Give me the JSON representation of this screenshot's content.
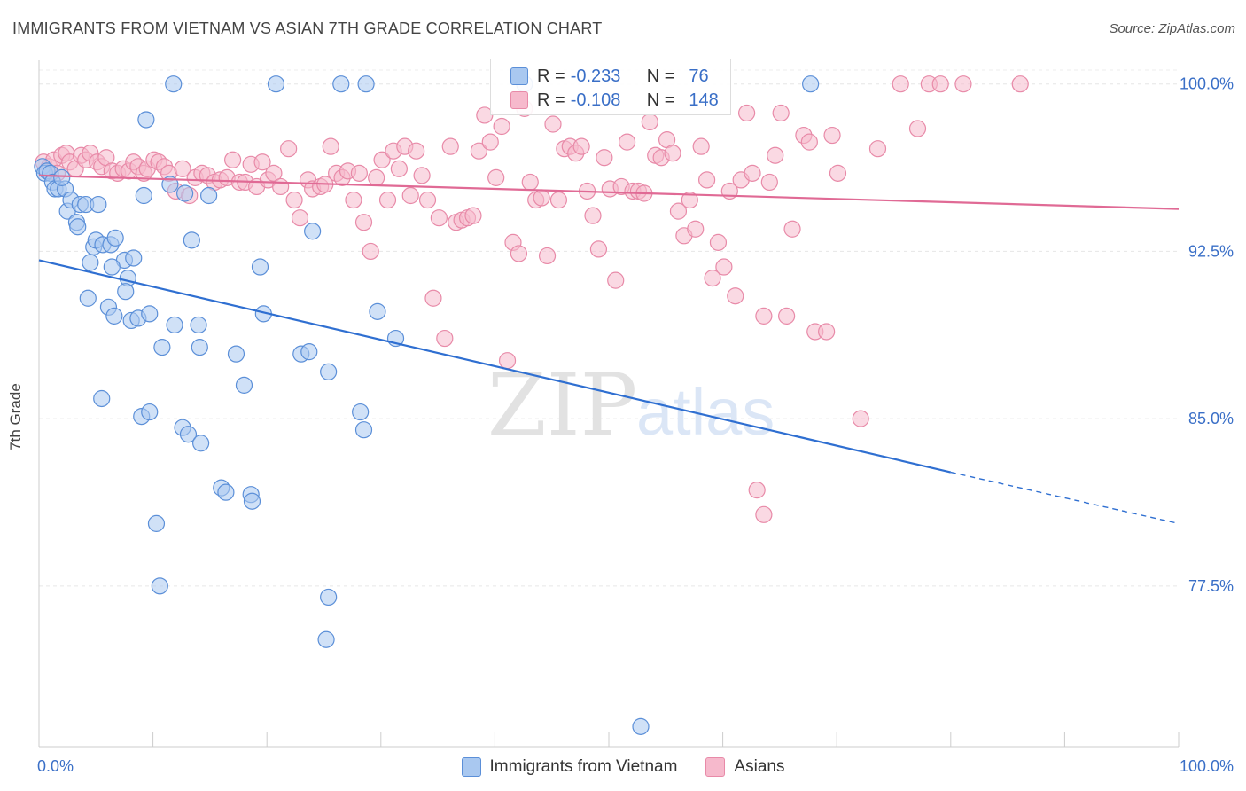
{
  "title": "IMMIGRANTS FROM VIETNAM VS ASIAN 7TH GRADE CORRELATION CHART",
  "source": "Source: ZipAtlas.com",
  "watermark": {
    "zip": "ZIP",
    "atlas": "atlas"
  },
  "colors": {
    "blue_fill": "#a9c8f0",
    "blue_stroke": "#5b8fd8",
    "blue_line": "#2f6fd1",
    "pink_fill": "#f6b9cc",
    "pink_stroke": "#e88aa8",
    "pink_line": "#e06a95",
    "axis_label": "#3a6fc7"
  },
  "legend_top": {
    "r_label": "R =",
    "n_label": "N =",
    "series": [
      {
        "r": "-0.233",
        "n": "76"
      },
      {
        "r": "-0.108",
        "n": "148"
      }
    ]
  },
  "legend_bottom": [
    "Immigrants from Vietnam",
    "Asians"
  ],
  "chart_data": {
    "type": "scatter",
    "title": "IMMIGRANTS FROM VIETNAM VS ASIAN 7TH GRADE CORRELATION CHART",
    "xlabel": "",
    "ylabel": "7th Grade",
    "xlim": [
      0,
      100
    ],
    "ylim": [
      70.3,
      101.3
    ],
    "x_tick_labels": [
      "0.0%",
      "100.0%"
    ],
    "y_ticks": [
      77.5,
      85.0,
      92.5,
      100.0
    ],
    "y_tick_labels": [
      "77.5%",
      "85.0%",
      "92.5%",
      "100.0%"
    ],
    "grid": true,
    "legend_position": "top-center",
    "series": [
      {
        "name": "Immigrants from Vietnam",
        "r": -0.233,
        "n": 76,
        "trend": {
          "x0": 0,
          "y0": 92.1,
          "x1": 80,
          "y1": 82.6,
          "dash_x1": 100,
          "dash_y1": 80.3
        },
        "points": [
          [
            0.3,
            96.3
          ],
          [
            0.5,
            96.0
          ],
          [
            0.7,
            96.1
          ],
          [
            1.0,
            96.0
          ],
          [
            1.2,
            95.6
          ],
          [
            1.4,
            95.3
          ],
          [
            1.7,
            95.3
          ],
          [
            2.3,
            95.3
          ],
          [
            2.5,
            94.3
          ],
          [
            2.8,
            94.8
          ],
          [
            3.3,
            93.8
          ],
          [
            3.4,
            93.6
          ],
          [
            3.6,
            94.6
          ],
          [
            4.1,
            94.6
          ],
          [
            5.2,
            94.6
          ],
          [
            4.8,
            92.7
          ],
          [
            5.0,
            93.0
          ],
          [
            5.6,
            92.8
          ],
          [
            6.3,
            92.8
          ],
          [
            6.7,
            93.1
          ],
          [
            7.5,
            92.1
          ],
          [
            8.3,
            92.2
          ],
          [
            4.5,
            92.0
          ],
          [
            6.4,
            91.8
          ],
          [
            7.8,
            91.3
          ],
          [
            7.6,
            90.7
          ],
          [
            4.3,
            90.4
          ],
          [
            6.1,
            90.0
          ],
          [
            6.6,
            89.6
          ],
          [
            8.1,
            89.4
          ],
          [
            8.7,
            89.5
          ],
          [
            9.7,
            89.7
          ],
          [
            11.9,
            89.2
          ],
          [
            14.0,
            89.2
          ],
          [
            10.8,
            88.2
          ],
          [
            14.1,
            88.2
          ],
          [
            17.3,
            87.9
          ],
          [
            18.0,
            86.5
          ],
          [
            19.4,
            91.8
          ],
          [
            19.7,
            89.7
          ],
          [
            23.0,
            87.9
          ],
          [
            23.7,
            88.0
          ],
          [
            25.4,
            87.1
          ],
          [
            29.7,
            89.8
          ],
          [
            31.3,
            88.6
          ],
          [
            5.5,
            85.9
          ],
          [
            9.0,
            85.1
          ],
          [
            9.7,
            85.3
          ],
          [
            12.6,
            84.6
          ],
          [
            13.1,
            84.3
          ],
          [
            14.2,
            83.9
          ],
          [
            16.0,
            81.9
          ],
          [
            16.4,
            81.7
          ],
          [
            18.6,
            81.6
          ],
          [
            18.7,
            81.3
          ],
          [
            10.3,
            80.3
          ],
          [
            10.6,
            77.5
          ],
          [
            25.4,
            77.0
          ],
          [
            25.2,
            75.1
          ],
          [
            28.2,
            85.3
          ],
          [
            28.5,
            84.5
          ],
          [
            24.0,
            93.4
          ],
          [
            13.4,
            93.0
          ],
          [
            12.8,
            95.1
          ],
          [
            11.5,
            95.5
          ],
          [
            9.2,
            95.0
          ],
          [
            14.9,
            95.0
          ],
          [
            9.4,
            98.4
          ],
          [
            11.8,
            100.0
          ],
          [
            20.8,
            100.0
          ],
          [
            26.5,
            100.0
          ],
          [
            28.7,
            100.0
          ],
          [
            42.6,
            100.0
          ],
          [
            67.7,
            100.0
          ],
          [
            52.8,
            71.2
          ],
          [
            2.0,
            95.8
          ]
        ]
      },
      {
        "name": "Asians",
        "r": -0.108,
        "n": 148,
        "trend": {
          "x0": 0,
          "y0": 95.9,
          "x1": 100,
          "y1": 94.4
        },
        "points": [
          [
            0.4,
            96.5
          ],
          [
            0.9,
            96.3
          ],
          [
            1.3,
            96.6
          ],
          [
            1.6,
            96.0
          ],
          [
            2.0,
            96.8
          ],
          [
            2.4,
            96.9
          ],
          [
            2.7,
            96.5
          ],
          [
            3.2,
            96.2
          ],
          [
            3.7,
            96.8
          ],
          [
            4.1,
            96.6
          ],
          [
            4.5,
            96.9
          ],
          [
            5.1,
            96.5
          ],
          [
            5.5,
            96.3
          ],
          [
            5.9,
            96.7
          ],
          [
            6.4,
            96.1
          ],
          [
            6.9,
            96.0
          ],
          [
            7.4,
            96.2
          ],
          [
            7.9,
            96.1
          ],
          [
            8.3,
            96.5
          ],
          [
            8.7,
            96.3
          ],
          [
            9.2,
            96.0
          ],
          [
            9.5,
            96.2
          ],
          [
            10.1,
            96.6
          ],
          [
            10.5,
            96.5
          ],
          [
            11.0,
            96.3
          ],
          [
            11.4,
            96.0
          ],
          [
            12.0,
            95.2
          ],
          [
            12.6,
            96.2
          ],
          [
            13.2,
            95.0
          ],
          [
            13.7,
            95.8
          ],
          [
            14.3,
            96.0
          ],
          [
            14.8,
            95.9
          ],
          [
            15.4,
            95.6
          ],
          [
            15.9,
            95.7
          ],
          [
            16.5,
            95.8
          ],
          [
            17.0,
            96.6
          ],
          [
            17.6,
            95.6
          ],
          [
            18.1,
            95.6
          ],
          [
            18.6,
            96.4
          ],
          [
            19.1,
            95.4
          ],
          [
            19.6,
            96.5
          ],
          [
            20.1,
            95.7
          ],
          [
            20.6,
            96.0
          ],
          [
            21.2,
            95.4
          ],
          [
            21.9,
            97.1
          ],
          [
            22.4,
            94.8
          ],
          [
            22.9,
            94.0
          ],
          [
            23.6,
            95.7
          ],
          [
            24.0,
            95.3
          ],
          [
            24.7,
            95.4
          ],
          [
            25.1,
            95.5
          ],
          [
            25.6,
            97.2
          ],
          [
            26.1,
            96.0
          ],
          [
            26.6,
            95.8
          ],
          [
            27.1,
            96.1
          ],
          [
            27.6,
            94.8
          ],
          [
            28.1,
            96.0
          ],
          [
            28.5,
            93.8
          ],
          [
            29.1,
            92.5
          ],
          [
            29.6,
            95.8
          ],
          [
            30.1,
            96.6
          ],
          [
            30.6,
            94.8
          ],
          [
            31.1,
            97.0
          ],
          [
            31.6,
            96.2
          ],
          [
            32.1,
            97.2
          ],
          [
            32.6,
            95.0
          ],
          [
            33.1,
            97.0
          ],
          [
            33.6,
            95.9
          ],
          [
            34.1,
            94.8
          ],
          [
            34.6,
            90.4
          ],
          [
            35.1,
            94.0
          ],
          [
            35.6,
            88.6
          ],
          [
            36.1,
            97.2
          ],
          [
            36.6,
            93.8
          ],
          [
            37.1,
            93.9
          ],
          [
            37.6,
            94.0
          ],
          [
            38.1,
            94.1
          ],
          [
            38.6,
            97.0
          ],
          [
            39.1,
            98.6
          ],
          [
            39.6,
            97.4
          ],
          [
            40.1,
            95.8
          ],
          [
            40.6,
            98.1
          ],
          [
            41.1,
            87.6
          ],
          [
            41.6,
            92.9
          ],
          [
            42.1,
            92.4
          ],
          [
            42.6,
            98.9
          ],
          [
            43.1,
            95.6
          ],
          [
            43.6,
            94.8
          ],
          [
            44.1,
            94.9
          ],
          [
            44.6,
            92.3
          ],
          [
            45.1,
            98.2
          ],
          [
            45.6,
            94.8
          ],
          [
            46.1,
            97.1
          ],
          [
            46.6,
            97.2
          ],
          [
            47.1,
            96.9
          ],
          [
            47.6,
            97.2
          ],
          [
            48.1,
            95.2
          ],
          [
            48.6,
            94.1
          ],
          [
            49.1,
            92.6
          ],
          [
            49.6,
            96.7
          ],
          [
            50.1,
            95.3
          ],
          [
            50.6,
            91.2
          ],
          [
            51.1,
            95.4
          ],
          [
            51.6,
            97.4
          ],
          [
            52.1,
            95.2
          ],
          [
            52.6,
            95.2
          ],
          [
            53.1,
            95.1
          ],
          [
            53.6,
            98.3
          ],
          [
            54.1,
            96.8
          ],
          [
            54.6,
            96.7
          ],
          [
            55.1,
            97.5
          ],
          [
            55.6,
            96.9
          ],
          [
            56.1,
            94.3
          ],
          [
            56.6,
            93.2
          ],
          [
            57.1,
            94.8
          ],
          [
            57.6,
            93.5
          ],
          [
            58.1,
            97.2
          ],
          [
            58.6,
            95.7
          ],
          [
            59.1,
            91.3
          ],
          [
            59.6,
            92.9
          ],
          [
            60.1,
            91.8
          ],
          [
            60.6,
            95.2
          ],
          [
            61.1,
            90.5
          ],
          [
            61.6,
            95.7
          ],
          [
            62.1,
            98.7
          ],
          [
            62.6,
            96.0
          ],
          [
            63.6,
            89.6
          ],
          [
            64.1,
            95.6
          ],
          [
            64.6,
            96.8
          ],
          [
            65.1,
            98.7
          ],
          [
            65.6,
            89.6
          ],
          [
            66.1,
            93.5
          ],
          [
            67.1,
            97.7
          ],
          [
            67.6,
            97.4
          ],
          [
            68.1,
            88.9
          ],
          [
            69.1,
            88.9
          ],
          [
            69.6,
            97.7
          ],
          [
            70.1,
            96.0
          ],
          [
            72.1,
            85.0
          ],
          [
            73.6,
            97.1
          ],
          [
            75.6,
            100.0
          ],
          [
            77.1,
            98.0
          ],
          [
            78.1,
            100.0
          ],
          [
            79.1,
            100.0
          ],
          [
            81.1,
            100.0
          ],
          [
            86.1,
            100.0
          ],
          [
            63.0,
            81.8
          ],
          [
            63.6,
            80.7
          ]
        ]
      }
    ]
  }
}
